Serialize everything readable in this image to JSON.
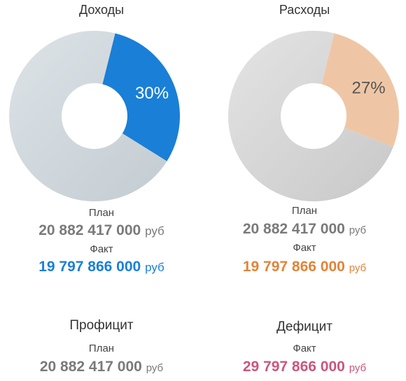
{
  "chart_data": [
    {
      "type": "pie",
      "title": "Доходы",
      "slices": [
        {
          "label": "30%",
          "value": 30,
          "color": "#1a7fd6"
        },
        {
          "label": "",
          "value": 70,
          "color": "#d5dce0"
        }
      ]
    },
    {
      "type": "pie",
      "title": "Расходы",
      "slices": [
        {
          "label": "27%",
          "value": 27,
          "color": "#efc6a5"
        },
        {
          "label": "",
          "value": 73,
          "color": "#dcdcdc"
        }
      ]
    }
  ],
  "income": {
    "plan_label": "План",
    "plan_value": "20 882 417 000",
    "plan_unit": "руб",
    "fact_label": "Факт",
    "fact_value": "19 797 866 000",
    "fact_unit": "руб"
  },
  "expenses": {
    "plan_label": "План",
    "plan_value": "20 882 417 000",
    "plan_unit": "руб",
    "fact_label": "Факт",
    "fact_value": "19 797 866 000",
    "fact_unit": "руб"
  },
  "surplus": {
    "title": "Профицит",
    "label": "План",
    "value": "20 882 417 000",
    "unit": "руб"
  },
  "deficit": {
    "title": "Дефицит",
    "label": "Факт",
    "value": "29 797 866 000",
    "unit": "руб"
  }
}
